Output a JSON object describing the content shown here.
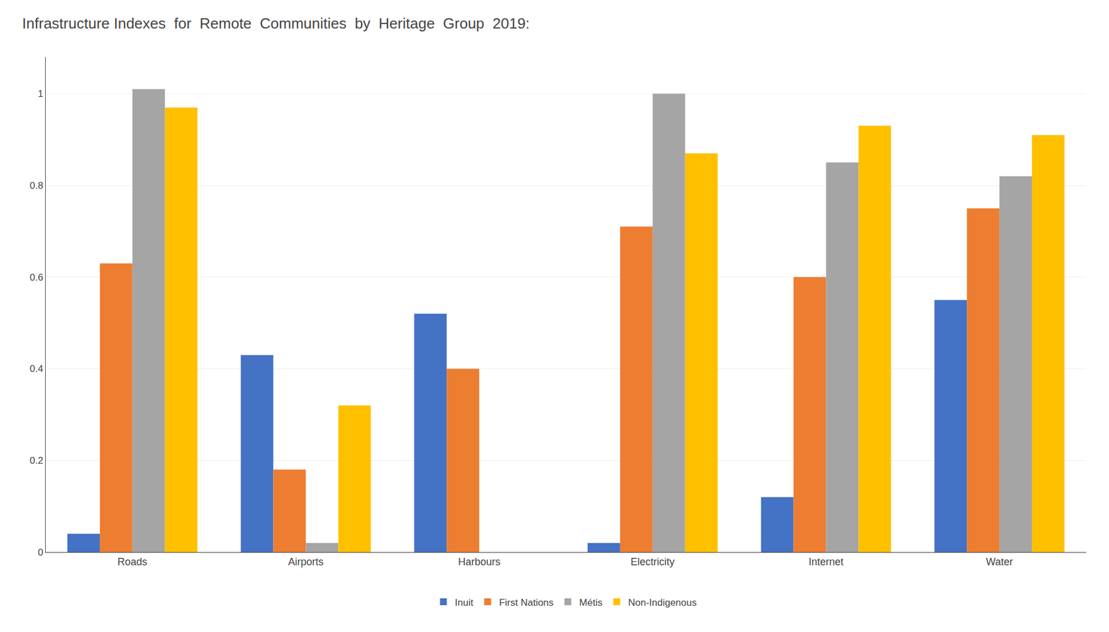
{
  "chart_data": {
    "type": "bar",
    "title": "Infrastructure Indexes  for  Remote  Communities  by  Heritage  Group  2019:",
    "categories": [
      "Roads",
      "Airports",
      "Harbours",
      "Electricity",
      "Internet",
      "Water"
    ],
    "series": [
      {
        "name": "Inuit",
        "color": "#4472C4",
        "values": [
          0.04,
          0.43,
          0.52,
          0.02,
          0.12,
          0.55
        ]
      },
      {
        "name": "First Nations",
        "color": "#ED7D31",
        "values": [
          0.63,
          0.18,
          0.4,
          0.71,
          0.6,
          0.75
        ]
      },
      {
        "name": "Métis",
        "color": "#A5A5A5",
        "values": [
          1.01,
          0.02,
          0.0,
          1.0,
          0.85,
          0.82
        ]
      },
      {
        "name": "Non-Indigenous",
        "color": "#FFC000",
        "values": [
          0.97,
          0.32,
          0.0,
          0.87,
          0.93,
          0.91
        ]
      }
    ],
    "ylim": [
      0,
      1.08
    ],
    "yticks": [
      0,
      0.2,
      0.4,
      0.6,
      0.8,
      1
    ],
    "grid": true,
    "legend": "bottom"
  }
}
